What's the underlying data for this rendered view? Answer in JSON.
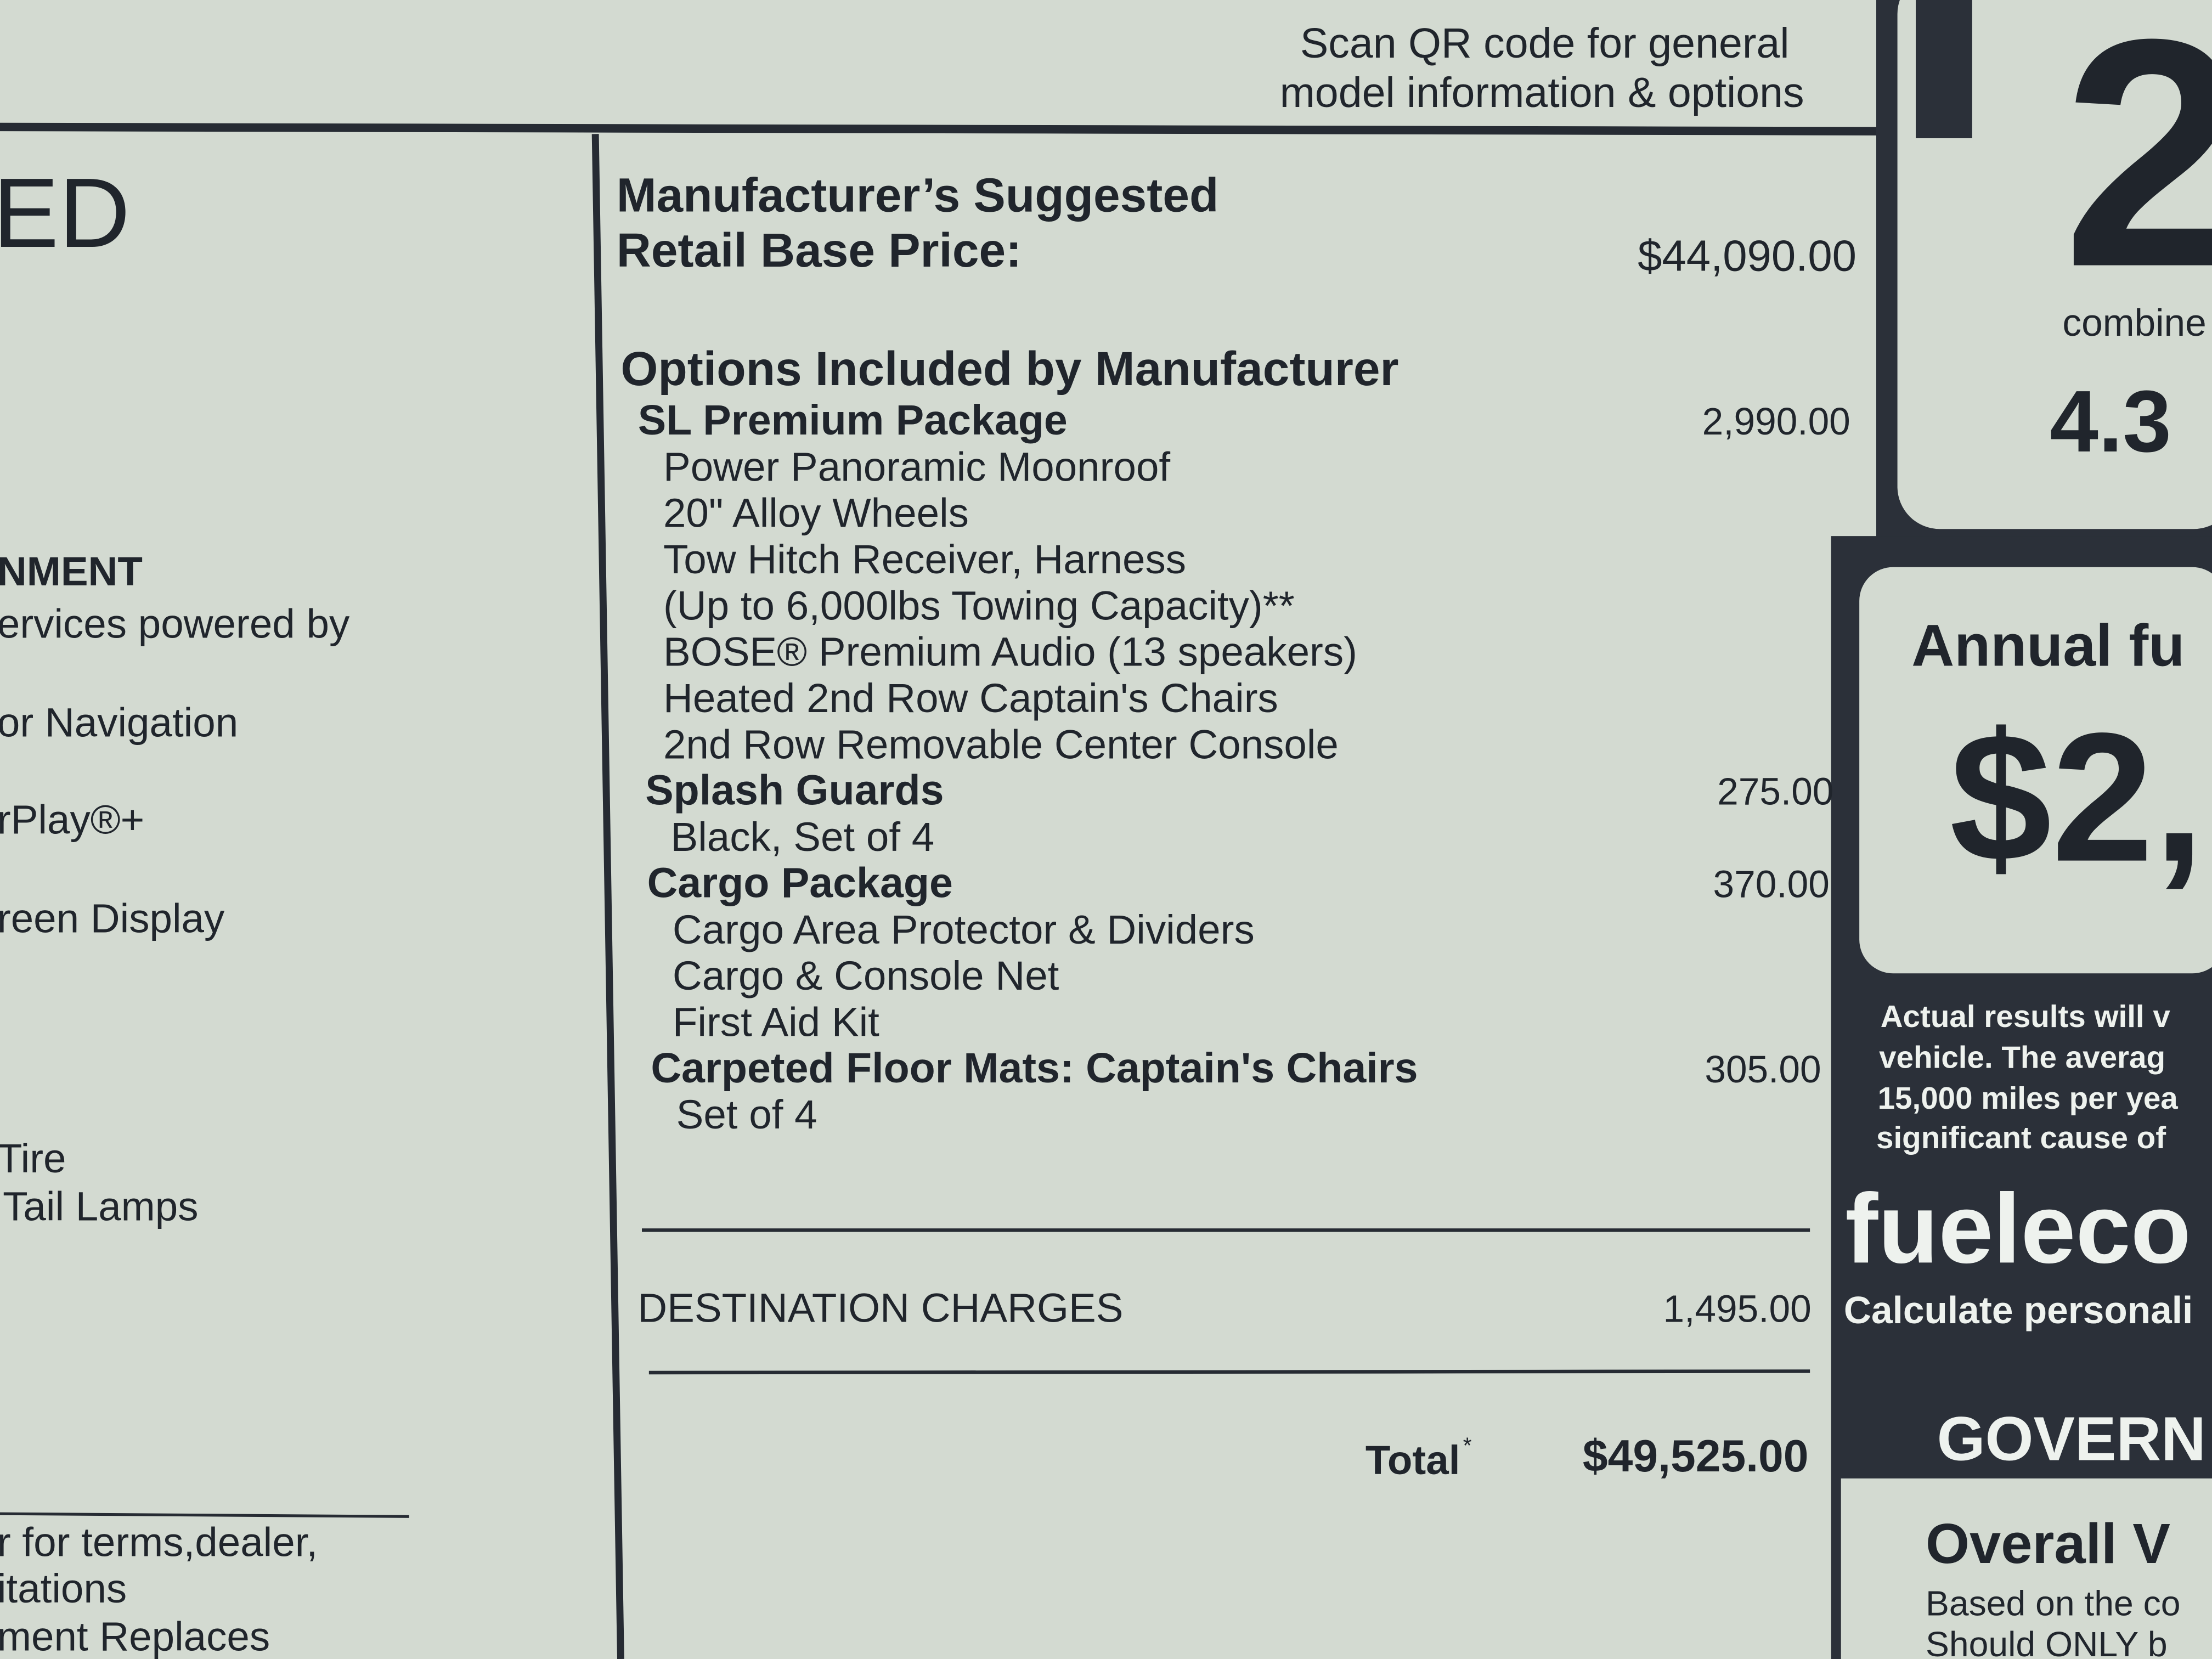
{
  "qr_note": {
    "lines": [
      "Scan QR code for general",
      "model information & options"
    ]
  },
  "left_panel": {
    "heading": "ED",
    "lines": [
      "NMENT",
      "ervices powered by",
      "or Navigation",
      "rPlay®+",
      "reen Display",
      "Tire",
      "Tail Lamps"
    ],
    "footer": [
      "r for terms,dealer,",
      "itations",
      "ment Replaces"
    ]
  },
  "price": {
    "title": [
      "Manufacturer’s Suggested",
      "Retail Base Price:"
    ],
    "base_price": "$44,090.00"
  },
  "options": {
    "heading": "Options Included by Manufacturer",
    "packages": [
      {
        "name": "SL Premium Package",
        "price": "2,990.00",
        "details": [
          "Power Panoramic Moonroof",
          "20\" Alloy Wheels",
          "Tow Hitch Receiver, Harness",
          "(Up to 6,000lbs Towing Capacity)**",
          "BOSE® Premium Audio (13 speakers)",
          "Heated 2nd Row Captain's Chairs",
          "2nd Row Removable Center Console"
        ]
      },
      {
        "name": "Splash Guards",
        "price": "275.00",
        "details": [
          "Black, Set of 4"
        ]
      },
      {
        "name": "Cargo Package",
        "price": "370.00",
        "details": [
          "Cargo Area Protector & Dividers",
          "Cargo & Console Net",
          "First Aid Kit"
        ]
      },
      {
        "name": "Carpeted Floor Mats: Captain's Chairs",
        "price": "305.00",
        "details": [
          "Set of 4"
        ]
      }
    ]
  },
  "destination": {
    "label": "DESTINATION CHARGES",
    "amount": "1,495.00"
  },
  "total": {
    "label": "Total",
    "marker": "*",
    "amount": "$49,525.00"
  },
  "right_panel": {
    "mpg": "2",
    "combined": "combine",
    "gallons": "4.3",
    "annual_heading": "Annual fu",
    "annual_cost": "$2,",
    "note": [
      "Actual results will v",
      "vehicle. The averag",
      "15,000 miles per yea",
      "significant cause of"
    ],
    "site": "fueleco",
    "site_note": "Calculate personali",
    "gov": "GOVERN",
    "overall": "Overall V",
    "overall_note": [
      "Based on the co",
      "Should ONLY b"
    ]
  }
}
